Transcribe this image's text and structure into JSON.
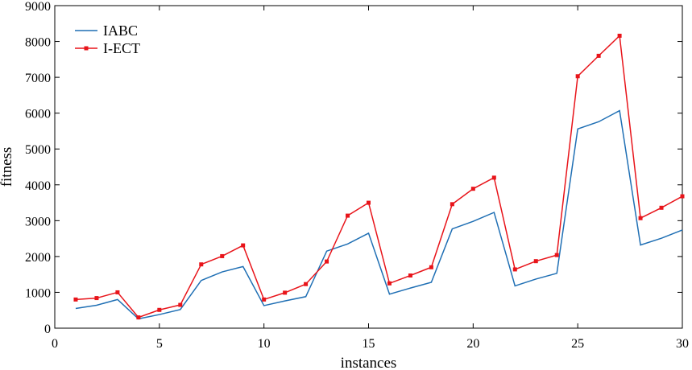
{
  "chart_data": {
    "type": "line",
    "title": "",
    "xlabel": "instances",
    "ylabel": "fitness",
    "xlim": [
      0,
      30
    ],
    "ylim": [
      0,
      9000
    ],
    "xticks": [
      0,
      5,
      10,
      15,
      20,
      25,
      30
    ],
    "yticks": [
      0,
      1000,
      2000,
      3000,
      4000,
      5000,
      6000,
      7000,
      8000,
      9000
    ],
    "grid": false,
    "legend_position": "top-left",
    "x": [
      1,
      2,
      3,
      4,
      5,
      6,
      7,
      8,
      9,
      10,
      11,
      12,
      13,
      14,
      15,
      16,
      17,
      18,
      19,
      20,
      21,
      22,
      23,
      24,
      25,
      26,
      27,
      28,
      29,
      30
    ],
    "series": [
      {
        "name": "IABC",
        "color": "#1f6fb4",
        "marker": "none",
        "values": [
          550,
          640,
          800,
          260,
          380,
          520,
          1330,
          1570,
          1720,
          630,
          760,
          880,
          2150,
          2350,
          2650,
          950,
          1120,
          1280,
          2770,
          2980,
          3230,
          1180,
          1370,
          1530,
          5560,
          5760,
          6070,
          2320,
          2510,
          2740
        ]
      },
      {
        "name": "I-ECT",
        "color": "#e8141a",
        "marker": "square",
        "values": [
          800,
          840,
          1000,
          300,
          510,
          650,
          1780,
          2010,
          2310,
          800,
          990,
          1230,
          1860,
          3140,
          3500,
          1250,
          1470,
          1700,
          3460,
          3890,
          4200,
          1640,
          1870,
          2040,
          7030,
          7600,
          8160,
          3070,
          3360,
          3680
        ]
      }
    ]
  }
}
